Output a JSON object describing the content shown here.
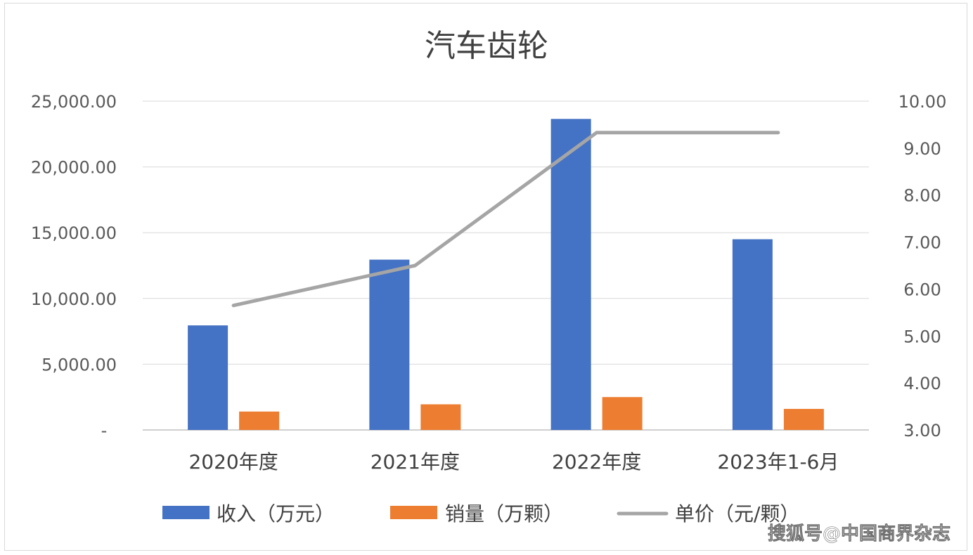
{
  "chart_data": {
    "type": "bar",
    "title": "汽车齿轮",
    "categories": [
      "2020年度",
      "2021年度",
      "2022年度",
      "2023年1-6月"
    ],
    "series": [
      {
        "name": "收入（万元）",
        "type": "bar",
        "axis": "left",
        "color": "#4472C4",
        "values": [
          7950,
          12950,
          23650,
          14500
        ]
      },
      {
        "name": "销量（万颗）",
        "type": "bar",
        "axis": "left",
        "color": "#ED7D31",
        "values": [
          1400,
          1950,
          2500,
          1600
        ]
      },
      {
        "name": "单价（元/颗）",
        "type": "line",
        "axis": "right",
        "color": "#A5A5A5",
        "values": [
          5.65,
          6.5,
          9.33,
          9.33
        ]
      }
    ],
    "y_left": {
      "ylim": [
        0,
        25000
      ],
      "ticks": [
        0,
        5000,
        10000,
        15000,
        20000,
        25000
      ],
      "tick_labels": [
        "-",
        "5,000.00",
        "10,000.00",
        "15,000.00",
        "20,000.00",
        "25,000.00"
      ]
    },
    "y_right": {
      "ylim": [
        3,
        10
      ],
      "ticks": [
        3,
        4,
        5,
        6,
        7,
        8,
        9,
        10
      ],
      "tick_labels": [
        "3.00",
        "4.00",
        "5.00",
        "6.00",
        "7.00",
        "8.00",
        "9.00",
        "10.00"
      ]
    },
    "grid": true,
    "legend_position": "bottom"
  },
  "watermark": "搜狐号@中国商界杂志"
}
